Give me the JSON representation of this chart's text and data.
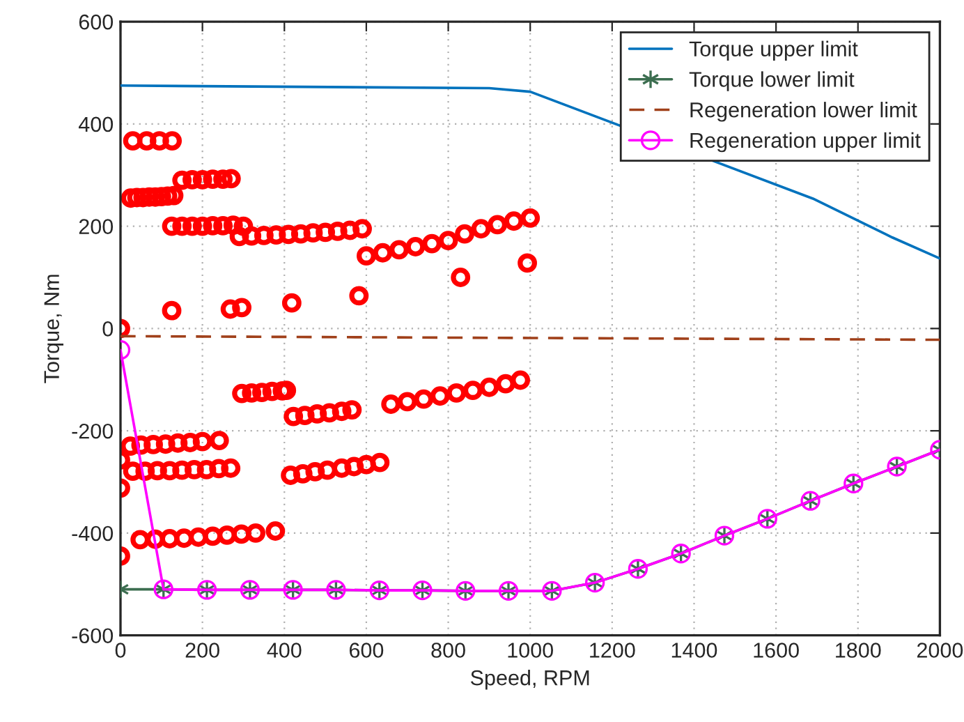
{
  "chart_data": {
    "type": "line",
    "xlabel": "Speed, RPM",
    "ylabel": "Torque, Nm",
    "xlim": [
      0,
      2000
    ],
    "xticks": [
      0,
      200,
      400,
      600,
      800,
      1000,
      1200,
      1400,
      1600,
      1800,
      2000
    ],
    "ylim": [
      -600,
      600
    ],
    "yticks": [
      -600,
      -400,
      -200,
      0,
      200,
      400,
      600
    ],
    "grid": true,
    "legend": "top right",
    "series": [
      {
        "name": "Torque upper limit",
        "color": "#0072bd",
        "marker": "none",
        "line_style": "solid",
        "x": [
          0,
          900,
          1000,
          1690,
          1884,
          2000
        ],
        "values": [
          475,
          470,
          463,
          254,
          178,
          137
        ]
      },
      {
        "name": "Torque lower limit",
        "color": "#3c6e50",
        "marker": "cross",
        "line_style": "solid",
        "x": [
          0,
          105,
          211,
          316,
          421,
          526,
          632,
          737,
          842,
          947,
          1053,
          1158,
          1263,
          1368,
          1474,
          1579,
          1684,
          1789,
          1895,
          2000
        ],
        "values": [
          -510,
          -510,
          -511,
          -511,
          -511,
          -511,
          -512,
          -512,
          -513,
          -513,
          -513,
          -497,
          -470,
          -440,
          -405,
          -372,
          -337,
          -303,
          -270,
          -237
        ]
      },
      {
        "name": "Regeneration lower limit",
        "color": "#a0401a",
        "marker": "none",
        "line_style": "dashed",
        "x": [
          0,
          2000
        ],
        "values": [
          -15,
          -22
        ]
      },
      {
        "name": "Regeneration upper limit",
        "color": "#ff00ff",
        "marker": "circle",
        "line_style": "solid",
        "x": [
          0,
          105,
          211,
          316,
          421,
          526,
          632,
          737,
          842,
          947,
          1053,
          1158,
          1263,
          1368,
          1474,
          1579,
          1684,
          1789,
          1895,
          2000
        ],
        "values": [
          -42,
          -510,
          -511,
          -511,
          -511,
          -511,
          -512,
          -512,
          -513,
          -513,
          -513,
          -497,
          -470,
          -440,
          -405,
          -372,
          -337,
          -303,
          -270,
          -237
        ]
      },
      {
        "type": "scatter",
        "color": "#ff0000",
        "marker": "circle",
        "x": [
          30,
          64,
          95,
          126,
          25,
          40,
          55,
          70,
          85,
          100,
          115,
          130,
          150,
          175,
          200,
          225,
          250,
          270,
          125,
          150,
          175,
          200,
          225,
          250,
          275,
          300,
          290,
          320,
          350,
          380,
          410,
          440,
          470,
          500,
          530,
          560,
          590,
          600,
          640,
          680,
          720,
          760,
          800,
          840,
          880,
          920,
          960,
          1000,
          0,
          125,
          268,
          296,
          418,
          582,
          830,
          993,
          296,
          320,
          345,
          370,
          395,
          405,
          422,
          450,
          480,
          510,
          540,
          565,
          660,
          700,
          740,
          780,
          820,
          860,
          900,
          940,
          976,
          24,
          50,
          80,
          110,
          140,
          170,
          200,
          241,
          30,
          60,
          90,
          120,
          150,
          180,
          210,
          240,
          269,
          415,
          445,
          475,
          505,
          540,
          570,
          600,
          633,
          48,
          85,
          120,
          155,
          190,
          225,
          260,
          295,
          330,
          378,
          0,
          0,
          0
        ],
        "values": [
          367,
          367,
          367,
          367,
          255,
          256,
          256,
          257,
          257,
          258,
          259,
          260,
          290,
          291,
          291,
          292,
          292,
          293,
          200,
          200,
          200,
          200,
          201,
          201,
          202,
          200,
          180,
          181,
          182,
          183,
          184,
          185,
          187,
          188,
          190,
          192,
          195,
          142,
          148,
          154,
          160,
          166,
          172,
          185,
          195,
          203,
          210,
          216,
          0,
          35,
          38,
          41,
          50,
          64,
          100,
          128,
          -127,
          -126,
          -125,
          -123,
          -122,
          -121,
          -172,
          -170,
          -167,
          -165,
          -162,
          -159,
          -148,
          -143,
          -138,
          -132,
          -126,
          -121,
          -115,
          -108,
          -101,
          -230,
          -228,
          -227,
          -226,
          -224,
          -223,
          -221,
          -219,
          -279,
          -279,
          -278,
          -278,
          -277,
          -276,
          -276,
          -274,
          -273,
          -287,
          -284,
          -280,
          -277,
          -273,
          -270,
          -266,
          -262,
          -413,
          -412,
          -411,
          -410,
          -408,
          -406,
          -404,
          -402,
          -400,
          -396,
          -257,
          -312,
          -445
        ]
      }
    ]
  }
}
